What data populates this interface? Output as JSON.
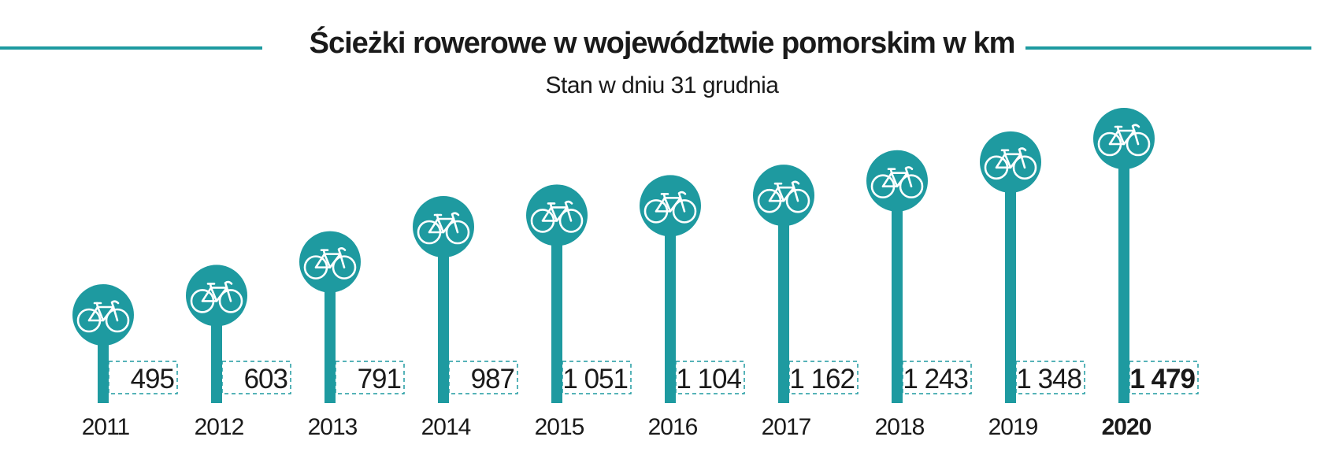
{
  "chart_data": {
    "type": "bar",
    "title": "Ścieżki rowerowe w województwie pomorskim w km",
    "subtitle": "Stan w dniu 31 grudnia",
    "categories": [
      "2011",
      "2012",
      "2013",
      "2014",
      "2015",
      "2016",
      "2017",
      "2018",
      "2019",
      "2020"
    ],
    "values": [
      495,
      603,
      791,
      987,
      1051,
      1104,
      1162,
      1243,
      1348,
      1479
    ],
    "value_labels": [
      "495",
      "603",
      "791",
      "987",
      "1 051",
      "1 104",
      "1 162",
      "1 243",
      "1 348",
      "1 479"
    ],
    "highlight_category": "2020",
    "marker_icon": "bicycle-icon",
    "colors": {
      "accent": "#1e9aa0",
      "text": "#1a1a1a",
      "background": "#ffffff"
    },
    "grid": false,
    "legend": "none"
  }
}
